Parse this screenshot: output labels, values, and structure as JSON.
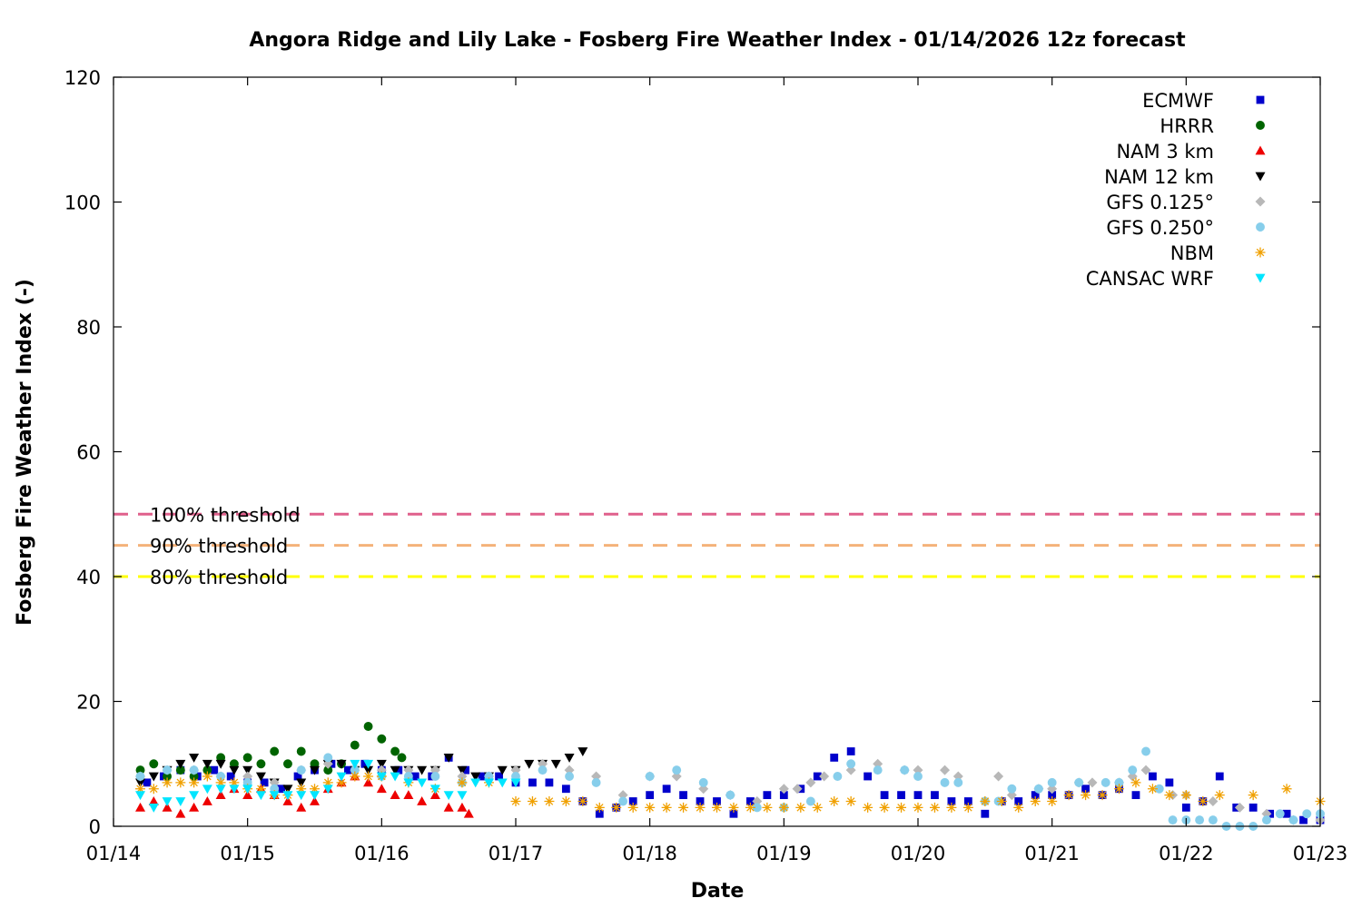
{
  "chart_data": {
    "type": "scatter",
    "title": "Angora Ridge and Lily Lake - Fosberg Fire Weather Index - 01/14/2026 12z forecast",
    "xlabel": "Date",
    "ylabel": "Fosberg Fire Weather Index (-)",
    "xlim": [
      "01/14 00z",
      "01/23 00z"
    ],
    "ylim": [
      0,
      120
    ],
    "x_ticks": [
      "01/14",
      "01/15",
      "01/16",
      "01/17",
      "01/18",
      "01/19",
      "01/20",
      "01/21",
      "01/22",
      "01/23"
    ],
    "y_ticks": [
      "0",
      "20",
      "40",
      "60",
      "80",
      "100",
      "120"
    ],
    "legend_position": "top-right",
    "grid": false,
    "x_unit": "day of January 2026 (fractional, UTC)",
    "thresholds": [
      {
        "label": "100% threshold",
        "value": 50,
        "color": "#e0608c"
      },
      {
        "label": "90% threshold",
        "value": 45,
        "color": "#f4b27a"
      },
      {
        "label": "80% threshold",
        "value": 40,
        "color": "#ffff00"
      }
    ],
    "series": [
      {
        "name": "ECMWF",
        "color": "#0000cc",
        "marker": "square",
        "x": [
          14.25,
          14.375,
          14.5,
          14.625,
          14.75,
          14.875,
          15.0,
          15.125,
          15.25,
          15.375,
          15.5,
          15.625,
          15.75,
          15.875,
          16.0,
          16.125,
          16.25,
          16.375,
          16.5,
          16.625,
          16.75,
          16.875,
          17.0,
          17.125,
          17.25,
          17.375,
          17.5,
          17.625,
          17.75,
          17.875,
          18.0,
          18.125,
          18.25,
          18.375,
          18.5,
          18.625,
          18.75,
          18.875,
          19.0,
          19.125,
          19.25,
          19.375,
          19.5,
          19.625,
          19.75,
          19.875,
          20.0,
          20.125,
          20.25,
          20.375,
          20.5,
          20.625,
          20.75,
          20.875,
          21.0,
          21.125,
          21.25,
          21.375,
          21.5,
          21.625,
          21.75,
          21.875,
          22.0,
          22.125,
          22.25,
          22.375,
          22.5,
          22.625,
          22.75,
          22.875,
          23.0
        ],
        "y": [
          7,
          8,
          9,
          8,
          9,
          8,
          7,
          7,
          6,
          8,
          9,
          10,
          9,
          10,
          9,
          9,
          8,
          8,
          11,
          9,
          8,
          8,
          7,
          7,
          7,
          6,
          4,
          2,
          3,
          4,
          5,
          6,
          5,
          4,
          4,
          2,
          4,
          5,
          5,
          6,
          8,
          11,
          12,
          8,
          5,
          5,
          5,
          5,
          4,
          4,
          2,
          4,
          4,
          5,
          5,
          5,
          6,
          5,
          6,
          5,
          8,
          7,
          3,
          4,
          8,
          3,
          3,
          2,
          2,
          1,
          1
        ]
      },
      {
        "name": "HRRR",
        "color": "#006400",
        "marker": "circle",
        "x": [
          14.2,
          14.3,
          14.4,
          14.5,
          14.6,
          14.7,
          14.8,
          14.9,
          15.0,
          15.1,
          15.2,
          15.3,
          15.4,
          15.5,
          15.6,
          15.7,
          15.8,
          15.9,
          16.0,
          16.1,
          16.15
        ],
        "y": [
          9,
          10,
          8,
          9,
          8,
          9,
          11,
          10,
          11,
          10,
          12,
          10,
          12,
          10,
          9,
          10,
          13,
          16,
          14,
          12,
          11
        ]
      },
      {
        "name": "NAM 3 km",
        "color": "#ee0000",
        "marker": "triangle",
        "x": [
          14.2,
          14.3,
          14.4,
          14.5,
          14.6,
          14.7,
          14.8,
          14.9,
          15.0,
          15.1,
          15.2,
          15.3,
          15.4,
          15.5,
          15.6,
          15.7,
          15.8,
          15.9,
          16.0,
          16.1,
          16.2,
          16.3,
          16.4,
          16.5,
          16.6,
          16.65
        ],
        "y": [
          3,
          4,
          3,
          2,
          3,
          4,
          5,
          6,
          5,
          6,
          5,
          4,
          3,
          4,
          6,
          7,
          8,
          7,
          6,
          5,
          5,
          4,
          5,
          3,
          3,
          2
        ]
      },
      {
        "name": "NAM 12 km",
        "color": "#000000",
        "marker": "triangle-down",
        "x": [
          14.2,
          14.3,
          14.4,
          14.5,
          14.6,
          14.7,
          14.8,
          14.9,
          15.0,
          15.1,
          15.2,
          15.3,
          15.4,
          15.5,
          15.6,
          15.7,
          15.8,
          15.9,
          16.0,
          16.1,
          16.2,
          16.3,
          16.4,
          16.5,
          16.6,
          16.7,
          16.8,
          16.9,
          17.0,
          17.1,
          17.2,
          17.3,
          17.4,
          17.5
        ],
        "y": [
          7,
          8,
          9,
          10,
          11,
          10,
          10,
          9,
          9,
          8,
          7,
          6,
          7,
          9,
          10,
          10,
          9,
          9,
          10,
          9,
          9,
          9,
          9,
          11,
          9,
          8,
          8,
          9,
          9,
          10,
          10,
          10,
          11,
          12
        ]
      },
      {
        "name": "GFS 0.125°",
        "color": "#b8b8b8",
        "marker": "diamond",
        "x": [
          14.2,
          14.4,
          14.6,
          14.8,
          15.0,
          15.2,
          15.4,
          15.6,
          15.8,
          16.0,
          16.2,
          16.4,
          16.6,
          16.8,
          17.0,
          17.2,
          17.4,
          17.6,
          17.8,
          18.0,
          18.2,
          18.4,
          18.6,
          18.8,
          19.0,
          19.1,
          19.2,
          19.3,
          19.5,
          19.7,
          19.9,
          20.0,
          20.2,
          20.3,
          20.5,
          20.6,
          20.7,
          20.9,
          21.0,
          21.2,
          21.3,
          21.5,
          21.6,
          21.7,
          21.9,
          22.0,
          22.2,
          22.4,
          22.6,
          22.8,
          23.0
        ],
        "y": [
          8,
          9,
          9,
          8,
          8,
          7,
          9,
          10,
          9,
          9,
          9,
          9,
          8,
          8,
          9,
          10,
          9,
          8,
          5,
          8,
          8,
          6,
          5,
          4,
          6,
          6,
          7,
          8,
          9,
          10,
          9,
          9,
          9,
          8,
          4,
          8,
          5,
          6,
          6,
          7,
          7,
          7,
          8,
          9,
          5,
          5,
          4,
          3,
          2,
          1,
          1
        ]
      },
      {
        "name": "GFS 0.250°",
        "color": "#87ceeb",
        "marker": "circle",
        "x": [
          14.2,
          14.4,
          14.6,
          14.8,
          15.0,
          15.2,
          15.4,
          15.6,
          15.8,
          16.0,
          16.2,
          16.4,
          16.6,
          16.8,
          17.0,
          17.2,
          17.4,
          17.6,
          17.8,
          18.0,
          18.2,
          18.4,
          18.6,
          18.8,
          19.0,
          19.2,
          19.4,
          19.5,
          19.7,
          19.9,
          20.0,
          20.2,
          20.3,
          20.5,
          20.6,
          20.7,
          20.9,
          21.0,
          21.2,
          21.4,
          21.5,
          21.6,
          21.7,
          21.8,
          21.9,
          22.0,
          22.1,
          22.2,
          22.3,
          22.4,
          22.5,
          22.6,
          22.7,
          22.8,
          22.9,
          23.0
        ],
        "y": [
          8,
          9,
          9,
          8,
          7,
          6,
          9,
          11,
          9,
          8,
          8,
          8,
          7,
          8,
          8,
          9,
          8,
          7,
          4,
          8,
          9,
          7,
          5,
          3,
          3,
          4,
          8,
          10,
          9,
          9,
          8,
          7,
          7,
          4,
          4,
          6,
          6,
          7,
          7,
          7,
          7,
          9,
          12,
          6,
          1,
          1,
          1,
          1,
          0,
          0,
          0,
          1,
          2,
          1,
          2,
          2
        ]
      },
      {
        "name": "NBM",
        "color": "#f0a000",
        "marker": "star",
        "x": [
          14.2,
          14.3,
          14.4,
          14.5,
          14.6,
          14.7,
          14.8,
          14.9,
          15.0,
          15.1,
          15.2,
          15.3,
          15.4,
          15.5,
          15.6,
          15.7,
          15.8,
          15.9,
          16.0,
          16.2,
          16.4,
          16.6,
          16.8,
          17.0,
          17.125,
          17.25,
          17.375,
          17.5,
          17.625,
          17.75,
          17.875,
          18.0,
          18.125,
          18.25,
          18.375,
          18.5,
          18.625,
          18.75,
          18.875,
          19.0,
          19.125,
          19.25,
          19.375,
          19.5,
          19.625,
          19.75,
          19.875,
          20.0,
          20.125,
          20.25,
          20.375,
          20.5,
          20.625,
          20.75,
          20.875,
          21.0,
          21.125,
          21.25,
          21.375,
          21.5,
          21.625,
          21.75,
          21.875,
          22.0,
          22.125,
          22.25,
          22.5,
          22.75,
          23.0
        ],
        "y": [
          6,
          6,
          7,
          7,
          7,
          8,
          7,
          7,
          6,
          6,
          5,
          5,
          6,
          6,
          7,
          7,
          8,
          8,
          8,
          7,
          6,
          7,
          7,
          4,
          4,
          4,
          4,
          4,
          3,
          3,
          3,
          3,
          3,
          3,
          3,
          3,
          3,
          3,
          3,
          3,
          3,
          3,
          4,
          4,
          3,
          3,
          3,
          3,
          3,
          3,
          3,
          4,
          4,
          3,
          4,
          4,
          5,
          5,
          5,
          6,
          7,
          6,
          5,
          5,
          4,
          5,
          5,
          6,
          4
        ]
      },
      {
        "name": "CANSAC WRF",
        "color": "#00e5ff",
        "marker": "triangle-down",
        "x": [
          14.2,
          14.3,
          14.4,
          14.5,
          14.6,
          14.7,
          14.8,
          14.9,
          15.0,
          15.1,
          15.2,
          15.3,
          15.4,
          15.5,
          15.6,
          15.7,
          15.8,
          15.9,
          16.0,
          16.1,
          16.2,
          16.3,
          16.4,
          16.5,
          16.6,
          16.7,
          16.8,
          16.9,
          17.0
        ],
        "y": [
          5,
          3,
          4,
          4,
          5,
          6,
          6,
          6,
          6,
          5,
          5,
          5,
          5,
          5,
          6,
          8,
          10,
          10,
          8,
          8,
          7,
          7,
          6,
          5,
          5,
          7,
          7,
          7,
          7
        ]
      }
    ]
  }
}
